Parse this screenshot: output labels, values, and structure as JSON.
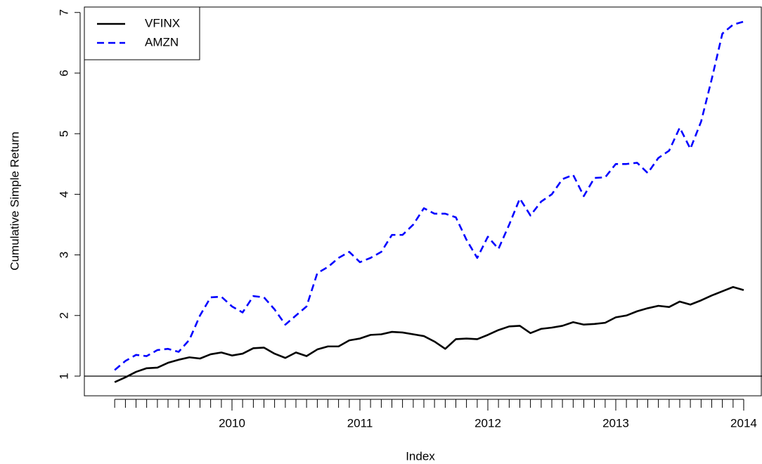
{
  "chart_data": {
    "type": "line",
    "xlabel": "Index",
    "ylabel": "Cumulative Simple Return",
    "x": [
      2009.083,
      2009.167,
      2009.25,
      2009.333,
      2009.417,
      2009.5,
      2009.583,
      2009.667,
      2009.75,
      2009.833,
      2009.917,
      2010.0,
      2010.083,
      2010.167,
      2010.25,
      2010.333,
      2010.417,
      2010.5,
      2010.583,
      2010.667,
      2010.75,
      2010.833,
      2010.917,
      2011.0,
      2011.083,
      2011.167,
      2011.25,
      2011.333,
      2011.417,
      2011.5,
      2011.583,
      2011.667,
      2011.75,
      2011.833,
      2011.917,
      2012.0,
      2012.083,
      2012.167,
      2012.25,
      2012.333,
      2012.417,
      2012.5,
      2012.583,
      2012.667,
      2012.75,
      2012.833,
      2012.917,
      2013.0,
      2013.083,
      2013.167,
      2013.25,
      2013.333,
      2013.417,
      2013.5,
      2013.583,
      2013.667,
      2013.75,
      2013.833,
      2013.917,
      2014.0
    ],
    "series": [
      {
        "name": "VFINX",
        "color": "#000000",
        "dash": "solid",
        "values": [
          0.9,
          0.98,
          1.07,
          1.13,
          1.14,
          1.22,
          1.27,
          1.31,
          1.29,
          1.36,
          1.39,
          1.34,
          1.37,
          1.46,
          1.47,
          1.37,
          1.3,
          1.39,
          1.33,
          1.44,
          1.49,
          1.49,
          1.59,
          1.62,
          1.68,
          1.69,
          1.73,
          1.72,
          1.69,
          1.66,
          1.57,
          1.45,
          1.61,
          1.62,
          1.61,
          1.68,
          1.76,
          1.82,
          1.83,
          1.71,
          1.78,
          1.8,
          1.83,
          1.89,
          1.85,
          1.86,
          1.88,
          1.97,
          2.0,
          2.07,
          2.12,
          2.16,
          2.14,
          2.23,
          2.18,
          2.25,
          2.33,
          2.4,
          2.47,
          2.42
        ]
      },
      {
        "name": "AMZN",
        "color": "#0000ff",
        "dash": "dashed",
        "values": [
          1.1,
          1.25,
          1.35,
          1.33,
          1.43,
          1.45,
          1.4,
          1.6,
          2.0,
          2.3,
          2.31,
          2.15,
          2.05,
          2.32,
          2.3,
          2.1,
          1.85,
          2.0,
          2.15,
          2.7,
          2.8,
          2.95,
          3.05,
          2.88,
          2.95,
          3.05,
          3.33,
          3.33,
          3.5,
          3.77,
          3.68,
          3.68,
          3.62,
          3.25,
          2.95,
          3.3,
          3.1,
          3.5,
          3.93,
          3.65,
          3.88,
          4.0,
          4.25,
          4.32,
          3.97,
          4.27,
          4.28,
          4.5,
          4.5,
          4.52,
          4.35,
          4.6,
          4.72,
          5.1,
          4.75,
          5.2,
          5.9,
          6.65,
          6.8,
          6.85
        ]
      }
    ],
    "hline": 1,
    "xlim": [
      2008.846,
      2014.143
    ],
    "xticks": [
      2010,
      2011,
      2012,
      2013,
      2014
    ],
    "ylim": [
      0.675,
      7.09
    ],
    "yticks": [
      1,
      2,
      3,
      4,
      5,
      6,
      7
    ],
    "legend": "top-left"
  }
}
